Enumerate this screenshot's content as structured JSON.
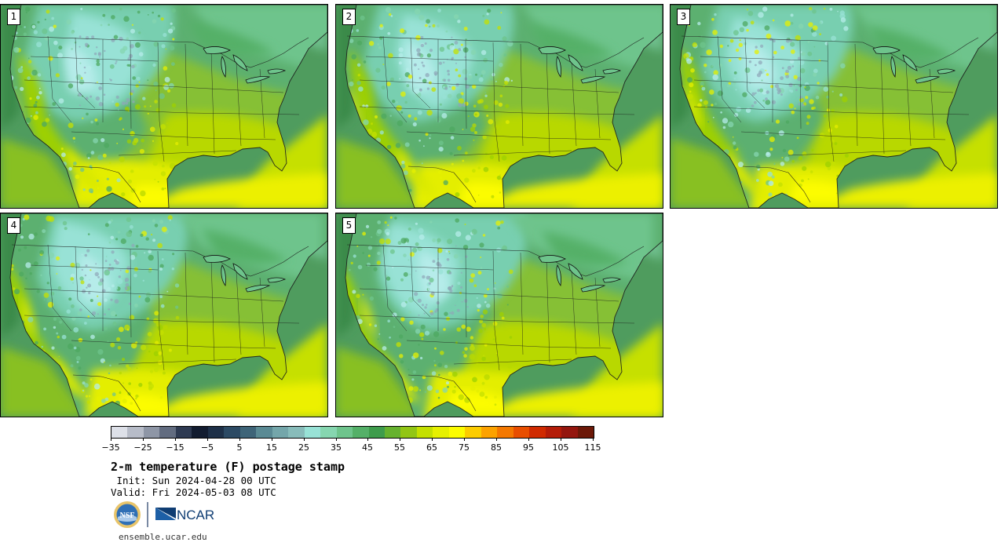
{
  "panels": [
    {
      "label": "1",
      "variant": 0
    },
    {
      "label": "2",
      "variant": 1
    },
    {
      "label": "3",
      "variant": 2
    },
    {
      "label": "4",
      "variant": 3
    },
    {
      "label": "5",
      "variant": 4
    }
  ],
  "colorbar": {
    "colors": [
      "#dde0e8",
      "#b7bcc8",
      "#8e96a6",
      "#626c80",
      "#2e3a52",
      "#121c30",
      "#1e3048",
      "#2c4a64",
      "#3e6478",
      "#5a8a94",
      "#74a6aa",
      "#88bcba",
      "#98e2d6",
      "#86d6b0",
      "#6ec48c",
      "#54b068",
      "#3e9c4c",
      "#66b22e",
      "#92c614",
      "#c4e000",
      "#e6f000",
      "#fcfc00",
      "#fccc00",
      "#fca200",
      "#f47800",
      "#e84e00",
      "#d02a00",
      "#b41c08",
      "#94160e",
      "#6c1808"
    ],
    "tick_labels": [
      "−35",
      "−25",
      "−15",
      "−5",
      "5",
      "15",
      "25",
      "35",
      "45",
      "55",
      "65",
      "75",
      "85",
      "95",
      "105",
      "115"
    ]
  },
  "title": "2-m temperature (F) postage stamp",
  "init": " Init: Sun 2024-04-28 00 UTC",
  "valid": "Valid: Fri 2024-05-03 08 UTC",
  "logos": {
    "nsf": "NSF",
    "ncar": "NCAR"
  },
  "footer_url": "ensemble.ucar.edu"
}
